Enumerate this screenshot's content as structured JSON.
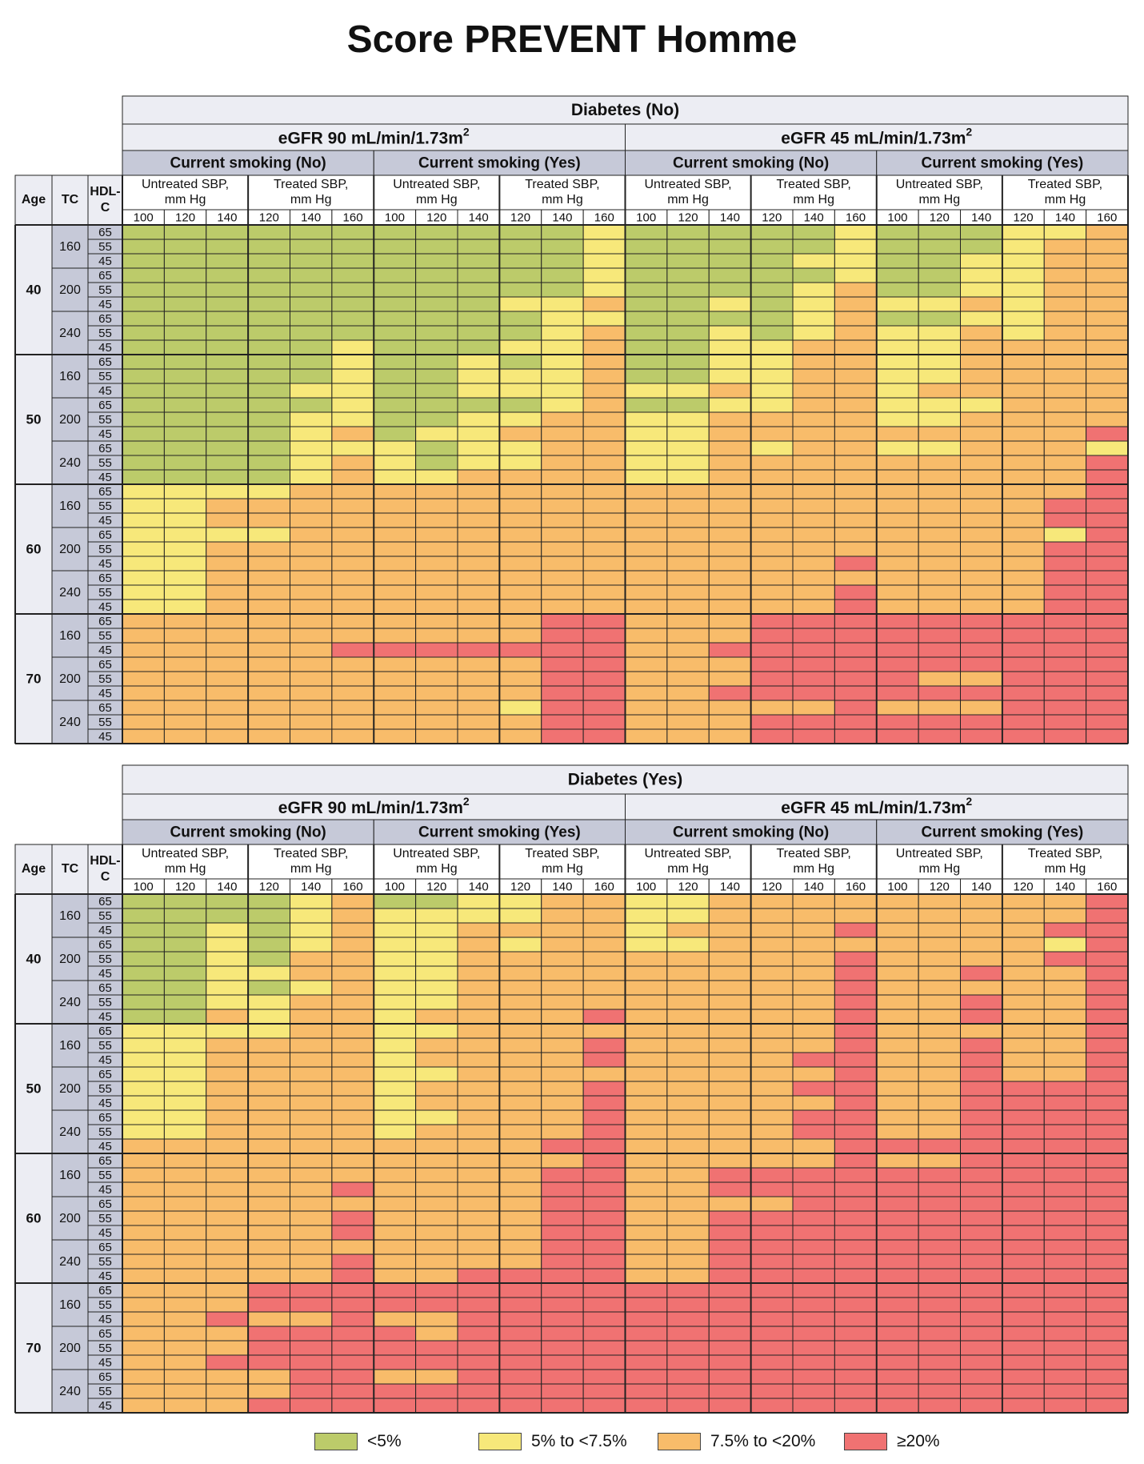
{
  "title": "Score PREVENT Homme",
  "legend": [
    {
      "label": "<5%",
      "color": "#bccb6a"
    },
    {
      "label": "5% to <7.5%",
      "color": "#f7e87a"
    },
    {
      "label": "7.5% to <20%",
      "color": "#f8bc6a"
    },
    {
      "label": "≥20%",
      "color": "#f07272"
    }
  ],
  "chart_data": {
    "type": "heatmap",
    "title": "Score PREVENT Homme",
    "row_headers": {
      "age": "Age",
      "tc": "TC",
      "hdl": "HDL-C"
    },
    "ages": [
      "40",
      "50",
      "60",
      "70"
    ],
    "tc_values": [
      "160",
      "200",
      "240"
    ],
    "hdl_values": [
      "65",
      "55",
      "45"
    ],
    "egfr_labels": [
      "eGFR 90 mL/min/1.73m",
      "eGFR 45 mL/min/1.73m"
    ],
    "egfr_superscript": "2",
    "smoking_labels": [
      "Current smoking (No)",
      "Current smoking (Yes)"
    ],
    "sbp_groups": [
      {
        "label": [
          "Untreated SBP,",
          "mm Hg"
        ],
        "values": [
          "100",
          "120",
          "140"
        ]
      },
      {
        "label": [
          "Treated SBP,",
          "mm Hg"
        ],
        "values": [
          "120",
          "140",
          "160"
        ]
      }
    ],
    "category_legend": {
      "G": "<5%",
      "Y": "5% to <7.5%",
      "O": "7.5% to <20%",
      "R": "≥20%"
    },
    "panels": [
      {
        "header": "Diabetes (No)",
        "rows": [
          "GGGGGGGGGGGY GGGGGY GGGYYO",
          "GGGGGGGGGGGY GGGGGY GGGYOO",
          "GGGGGGGGGGGY GGGGYY GGYYOO",
          "GGGGGGGGGGGY GGGGGY GGYYOO",
          "GGGGGGGGGGGY GGGGYO GGYYOO",
          "GGGGGGGGGYYO GGYGYO YYOYOO",
          "GGGGGGGGGGYY GGGGYO GGYYOO",
          "GGGGGGGGGGYO GGYGYO YYOYOO",
          "GGGGGYGGGYYO GGYYOO YYOOOO",
          "GGGGGYGGYGYO GGYYOO YYOOOO",
          "GGGGGYGGYYYO GGYYOO YYOOOO",
          "GGGGYYGGYYYO YYOYOO YOOOOO",
          "GGGGGYGGGGYO GGYYOO YYYOOO",
          "GGGGYYGGYYOO YYOOOO YYOOOO",
          "GGGGYOGYYOOO YYOOOO OOOOOR",
          "GGGGYYYGYYOO YYOYOO YYOOOY",
          "GGGGYOYGYYOO YYOOOO OOOOOR",
          "GGGGYOYYOOOO YYOOOO OOOOOR",
          "YYYYOOOOOOOO OOOOOO OOOOOR",
          "YYOOOOOOOOOO OOOOOO OOOORR",
          "YYOOOOOOOOOO OOOOOO OOOORR",
          "YYYYOOOOOOOO OOOOOO OOOOYR",
          "YYOOOOOOOOOO OOOOOO OOOORR",
          "YYOOOOOOOOOO OOOOOR OOOORR",
          "YYOOOOOOOOOO OOOOOO OOOORR",
          "YYOOOOOOOOOO OOOOOR OOOORR",
          "YYOOOOOOOOOO OOOOOR OOOORR",
          "OOOOOOOOOORR OOORRR RRRRRR",
          "OOOOOOOOOORR OOORRR RRRRRR",
          "OOOOORRRRRRR OORRRR RRRRRR",
          "OOOOOOOOOORR OOORRR RRRRRR",
          "OOOOOOOOOORR OOORRR ROORRR",
          "OOOOOOOOOORR OORRRR RRRRRR",
          "OOOOOOOOOYRR OOOOOR OOORRR",
          "OOOOOOOOOORR OOORRR RRRRRR",
          "OOOOOOOOOORR OOORRR RRRRRR"
        ]
      },
      {
        "header": "Diabetes (Yes)",
        "rows": [
          "GGGGYOGGYYOO YYOOOO OOOOOR",
          "GGGGYOYYYYOO YYOOOO OOOOOR",
          "GGYGYOYYOOOO YOOOOR OOOORR",
          "GGYGYOYYOYOO YYOOOO OOOOYR",
          "GGYGOOYYOOOO OOOOOR OOOORR",
          "GGYYOOYYOOOO OOOOOR OOROOR",
          "GGYGYOYYOOOO OOOOOR OOOOOR",
          "GGYYOOYYOOOO OOOOOR OOROOR",
          "GGOYOOYOOOOR OOOOOR OOROOR",
          "YYYYOOYYOOOO OOOOOR OOOOOR",
          "YYOOOOYOOOOR OOOOOR OOROOR",
          "YYOOOOYOOOOR OOOORR OOROOR",
          "YYOOOOYYOOOO OOOOOR OOROOR",
          "YYOOOOYOOOOR OOOORR OORRRR",
          "YYOOOOYOOOOR OOOOOR OORRRR",
          "YYOOOOYYOOOR OOOORR OORRRR",
          "YYOOOOYOOOOR OOOORR OORRRR",
          "OOOOOOOOOORR OOOOOR RRRRRR",
          "OOOOOOOOOOOR OOOOOR OORRRR",
          "OOOOOOOOOORR OORRRR RRRRRR",
          "OOOOOROOOORR OORRRR RRRRRR",
          "OOOOOOOOOORR OOOORR RRRRRR",
          "OOOOOROOOORR OORRRR RRRRRR",
          "OOOOOROOOORR OORRRR RRRRRR",
          "OOOOOOOOOORR OORRRR RRRRRR",
          "OOOOOROOOORR OORRRR RRRRRR",
          "OOOOOROORRRR OORRRR RRRRRR",
          "OOORRRRRRRRR RRRRRR RRRRRR",
          "OOORRRRRRRRR RRRRRR RRRRRR",
          "OOROOROORRRR RRRRRR RRRRRR",
          "OOORRRRORRRR RRRRRR RRRRRR",
          "OOORRRRRRRRR RRRRRR RRRRRR",
          "OORRRRRRRRRR RRRRRR RRRRRR",
          "OOOORROORRRR RRRRRR RRRRRR",
          "OOOORRRRRRRR RRRRRR RRRRRR",
          "OOORRRRRRRRR RRRRRR RRRRRR"
        ]
      }
    ]
  }
}
